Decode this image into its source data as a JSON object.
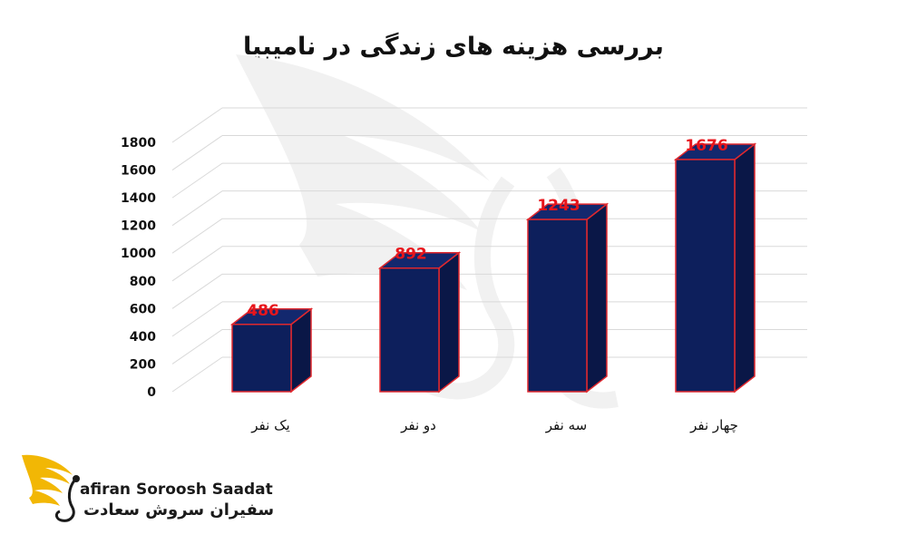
{
  "chart_data": {
    "type": "bar",
    "title": "بررسی هزینه های زندگی  در نامیبیا",
    "categories": [
      "یک نفر",
      "دو نفر",
      "سه نفر",
      "چهار نفر"
    ],
    "values": [
      486,
      892,
      1243,
      1676
    ],
    "ylim": [
      0,
      1800
    ],
    "yticks": [
      "0",
      "200",
      "400",
      "600",
      "800",
      "1000",
      "1200",
      "1400",
      "1600",
      "1800"
    ],
    "grid": true,
    "legend": "none",
    "style": "3d-column"
  },
  "colors": {
    "bar_front": "#0d1f5c",
    "bar_side": "#0a1747",
    "bar_top": "#13286e",
    "bar_outline": "#e0282e",
    "data_label": "#e8161c",
    "grid": "#d9d9d9",
    "watermark": "#f1f1f1"
  },
  "logo": {
    "name_en": "afiran Soroosh Saadat",
    "name_fa": "سفیران سروش سعادت"
  }
}
